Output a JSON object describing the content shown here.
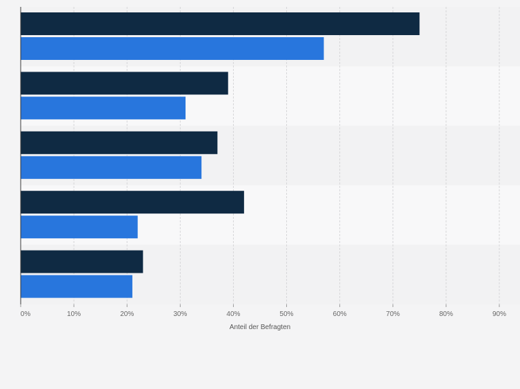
{
  "chart_data": {
    "type": "bar",
    "orientation": "horizontal",
    "categories": [
      "",
      "",
      "",
      "",
      ""
    ],
    "series": [
      {
        "values": [
          75,
          39,
          37,
          42,
          23
        ],
        "color": "#0f2a43"
      },
      {
        "values": [
          57,
          31,
          34,
          22,
          21
        ],
        "color": "#2876dd"
      }
    ],
    "xlim": [
      0,
      90
    ],
    "x_ticks": [
      0,
      10,
      20,
      30,
      40,
      50,
      60,
      70,
      80,
      90
    ],
    "x_tick_labels": [
      "0%",
      "10%",
      "20%",
      "30%",
      "40%",
      "50%",
      "60%",
      "70%",
      "80%",
      "90%"
    ],
    "xlabel": "Anteil der Befragten",
    "grid": "vertical dashed",
    "row_band_colors": [
      "#f2f2f3",
      "#f8f8f9"
    ]
  }
}
